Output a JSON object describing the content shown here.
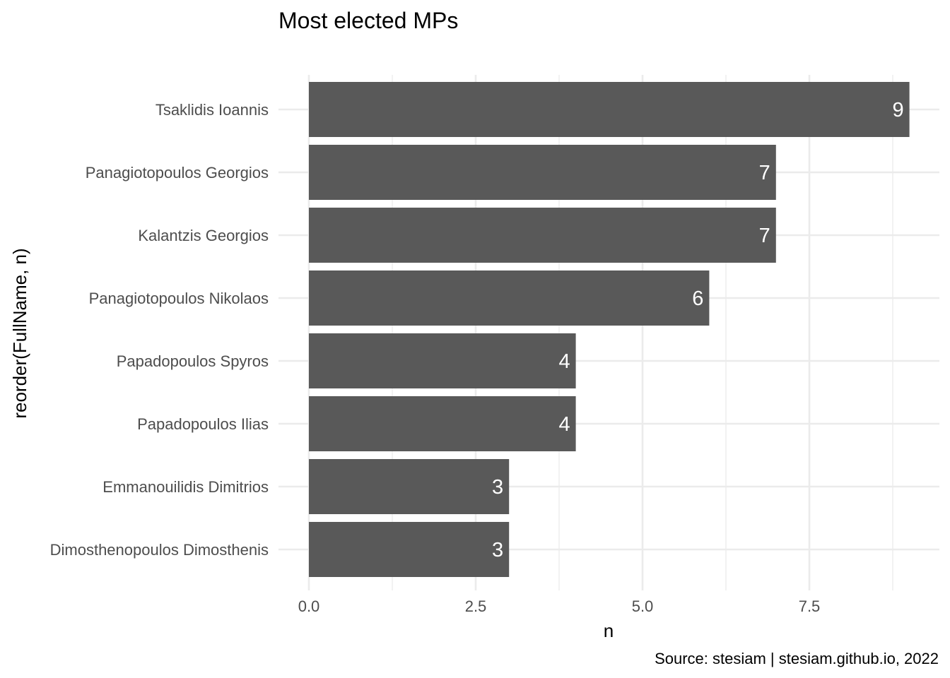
{
  "chart_data": {
    "type": "bar",
    "orientation": "horizontal",
    "title": "Most elected MPs",
    "xlabel": "n",
    "ylabel": "reorder(FullName, n)",
    "caption": "Source: stesiam | stesiam.github.io, 2022",
    "categories": [
      "Tsaklidis Ioannis",
      "Panagiotopoulos Georgios",
      "Kalantzis Georgios",
      "Panagiotopoulos Nikolaos",
      "Papadopoulos Spyros",
      "Papadopoulos Ilias",
      "Emmanouilidis Dimitrios",
      "Dimosthenopoulos Dimosthenis"
    ],
    "values": [
      9,
      7,
      7,
      6,
      4,
      4,
      3,
      3
    ],
    "xlim": [
      0,
      9
    ],
    "xticks": [
      "0.0",
      "2.5",
      "5.0",
      "7.5"
    ],
    "xtick_values": [
      0,
      2.5,
      5,
      7.5
    ],
    "grid": true,
    "bar_color": "#595959",
    "label_color": "#ffffff",
    "gridline_color": "#ebebeb"
  }
}
